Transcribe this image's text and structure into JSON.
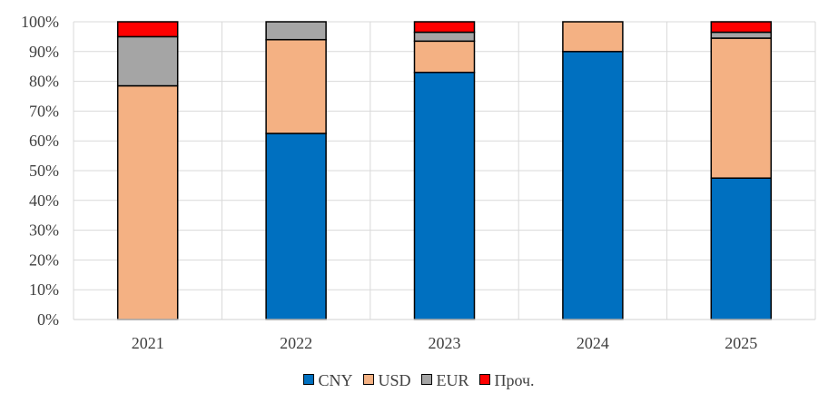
{
  "chart_data": {
    "type": "bar",
    "stacked": true,
    "percent_axis": true,
    "categories": [
      "2021",
      "2022",
      "2023",
      "2024",
      "2025"
    ],
    "series": [
      {
        "name": "CNY",
        "color": "#0070C0",
        "values": [
          0,
          62.5,
          83,
          90,
          47.5
        ]
      },
      {
        "name": "USD",
        "color": "#F4B183",
        "values": [
          78.5,
          31.5,
          10.5,
          10,
          47
        ]
      },
      {
        "name": "EUR",
        "color": "#A5A5A5",
        "values": [
          16.5,
          6,
          3,
          0,
          2
        ]
      },
      {
        "name": "Проч.",
        "color": "#FF0000",
        "values": [
          5,
          0,
          3.5,
          0,
          3.5
        ]
      }
    ],
    "ylim": [
      0,
      100
    ],
    "yticks": [
      0,
      10,
      20,
      30,
      40,
      50,
      60,
      70,
      80,
      90,
      100
    ],
    "ytick_labels": [
      "0%",
      "10%",
      "20%",
      "30%",
      "40%",
      "50%",
      "60%",
      "70%",
      "80%",
      "90%",
      "100%"
    ],
    "grid": true,
    "legend_position": "bottom",
    "title": "",
    "xlabel": "",
    "ylabel": ""
  }
}
